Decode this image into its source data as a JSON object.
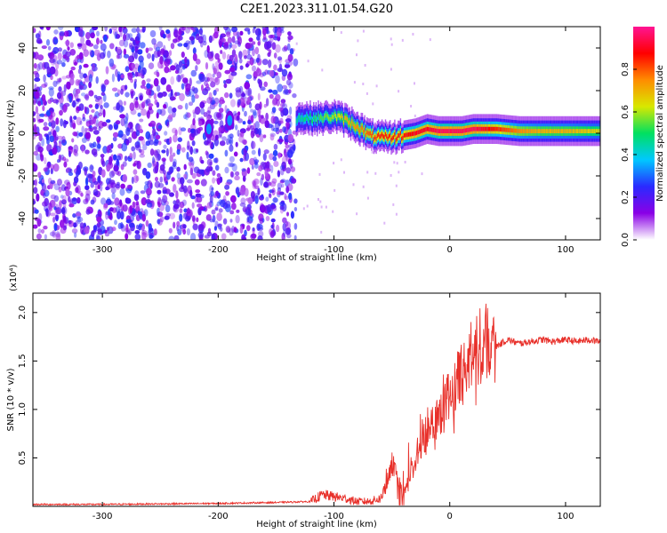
{
  "title": "C2E1.2023.311.01.54.G20",
  "chart_data": [
    {
      "type": "heatmap",
      "xlabel": "Height of straight line (km)",
      "ylabel": "Frequency (Hz)",
      "xlim": [
        -360,
        130
      ],
      "ylim": [
        -50,
        50
      ],
      "xticks": [
        -300,
        -200,
        -100,
        0,
        100
      ],
      "yticks": [
        -40,
        -20,
        0,
        20,
        40
      ],
      "colorbar": {
        "label": "Normalized spectral amplitude",
        "range": [
          0.0,
          1.0
        ],
        "ticks": [
          0.0,
          0.2,
          0.4,
          0.6,
          0.8
        ],
        "colors": [
          "#ffffff",
          "#8a00e6",
          "#2a2aff",
          "#00c8ff",
          "#00e060",
          "#d8e800",
          "#ff8c00",
          "#ff0000",
          "#ff1493"
        ]
      },
      "noise_region": {
        "x_range": [
          -360,
          -133
        ],
        "approx_amplitude": [
          0.0,
          0.35
        ]
      },
      "signal_track": {
        "x": [
          -133,
          -120,
          -110,
          -100,
          -90,
          -80,
          -70,
          -60,
          -50,
          -40,
          -30,
          -20,
          -10,
          0,
          10,
          20,
          30,
          40,
          60,
          80,
          100,
          130
        ],
        "frequency_hz": [
          7,
          7,
          7,
          8,
          6,
          3,
          -1,
          -2,
          -2,
          -1,
          0,
          2,
          1,
          1,
          1,
          2,
          2,
          2,
          1,
          1,
          1,
          1
        ],
        "amplitude": [
          0.45,
          0.5,
          0.55,
          0.6,
          0.7,
          0.75,
          0.8,
          0.85,
          0.85,
          0.85,
          0.9,
          0.9,
          0.95,
          0.95,
          0.95,
          0.95,
          0.9,
          0.85,
          0.75,
          0.7,
          0.7,
          0.65
        ]
      },
      "blobs": [
        {
          "x": -208,
          "frequency_hz": 2,
          "amplitude": 0.55
        },
        {
          "x": -190,
          "frequency_hz": 6,
          "amplitude": 0.55
        }
      ]
    },
    {
      "type": "line",
      "xlabel": "Height of straight line (km)",
      "ylabel": "SNR (10 * v/v)",
      "y_multiplier": "(x10⁴)",
      "xlim": [
        -360,
        130
      ],
      "ylim": [
        0.0,
        2.2
      ],
      "xticks": [
        -300,
        -200,
        -100,
        0,
        100
      ],
      "yticks": [
        0.5,
        1.0,
        1.5,
        2.0
      ],
      "yticklabels": [
        "0.5",
        "1.0",
        "1.5",
        "2.0"
      ],
      "color": "#e8302a",
      "series": [
        {
          "x": [
            -360,
            -300,
            -200,
            -150,
            -120,
            -110,
            -100,
            -90,
            -80,
            -70,
            -60,
            -55,
            -50,
            -45,
            -40,
            -35,
            -30,
            -25,
            -20,
            -10,
            0,
            10,
            20,
            30,
            40,
            50,
            60,
            70,
            80,
            90,
            100,
            110,
            120,
            130
          ],
          "y": [
            0.02,
            0.02,
            0.03,
            0.04,
            0.05,
            0.12,
            0.1,
            0.08,
            0.05,
            0.05,
            0.08,
            0.2,
            0.45,
            0.3,
            0.1,
            0.3,
            0.45,
            0.6,
            0.8,
            0.95,
            1.15,
            1.35,
            1.55,
            1.7,
            1.65,
            1.72,
            1.68,
            1.7,
            1.72,
            1.7,
            1.72,
            1.7,
            1.72,
            1.7
          ]
        }
      ]
    }
  ]
}
